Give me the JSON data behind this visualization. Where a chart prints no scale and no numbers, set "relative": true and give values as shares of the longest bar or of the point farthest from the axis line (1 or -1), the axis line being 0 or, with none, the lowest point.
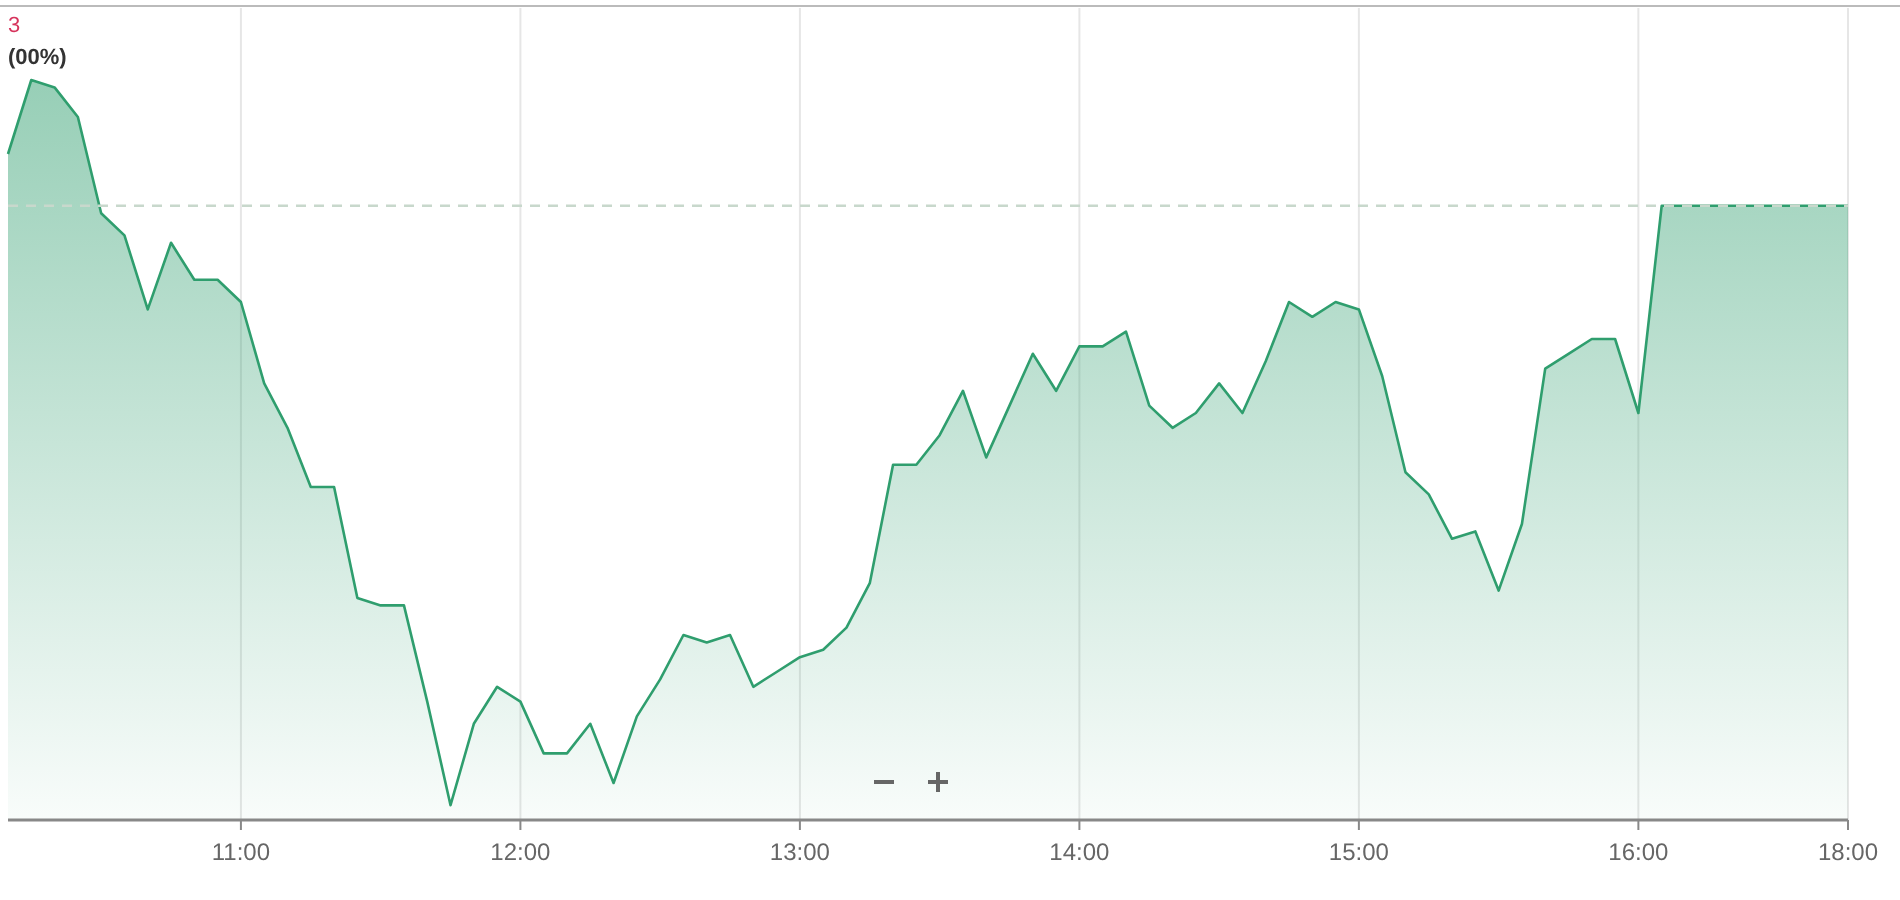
{
  "chart_data": {
    "type": "area",
    "relative": true,
    "categories": [
      null,
      null,
      null,
      null,
      null,
      null,
      null,
      null,
      null,
      null,
      "11:00",
      null,
      null,
      null,
      null,
      null,
      null,
      null,
      null,
      null,
      null,
      null,
      "12:00",
      null,
      null,
      null,
      null,
      null,
      null,
      null,
      null,
      null,
      null,
      null,
      "13:00",
      null,
      null,
      null,
      null,
      null,
      null,
      null,
      null,
      null,
      null,
      null,
      "14:00",
      null,
      null,
      null,
      null,
      null,
      null,
      null,
      null,
      null,
      null,
      null,
      "15:00",
      null,
      null,
      null,
      null,
      null,
      null,
      null,
      null,
      null,
      null,
      null,
      "16:00",
      null,
      null,
      null,
      null,
      null,
      null,
      null,
      null,
      "18:00"
    ],
    "series": [
      {
        "color": "#2f9e6e",
        "values": [
          0.9,
          1.0,
          0.99,
          0.95,
          0.82,
          0.79,
          0.69,
          0.78,
          0.73,
          0.73,
          0.7,
          0.59,
          0.53,
          0.45,
          0.45,
          0.3,
          0.29,
          0.29,
          0.16,
          0.02,
          0.13,
          0.18,
          0.16,
          0.09,
          0.09,
          0.13,
          0.05,
          0.14,
          0.19,
          0.25,
          0.24,
          0.25,
          0.18,
          0.2,
          0.22,
          0.23,
          0.26,
          0.32,
          0.48,
          0.48,
          0.52,
          0.58,
          0.49,
          0.56,
          0.63,
          0.58,
          0.64,
          0.64,
          0.66,
          0.56,
          0.53,
          0.55,
          0.59,
          0.55,
          0.62,
          0.7,
          0.68,
          0.7,
          0.69,
          0.6,
          0.47,
          0.44,
          0.38,
          0.39,
          0.31,
          0.4,
          0.61,
          0.63,
          0.65,
          0.65,
          0.55,
          0.83,
          0.83,
          0.83,
          0.83,
          0.83,
          0.83,
          0.83,
          0.83,
          0.83
        ]
      }
    ],
    "ref_lines": [
      {
        "axis": "y",
        "value": 0.83,
        "color": "#c8d8cc",
        "line_style": "dashed"
      }
    ],
    "annotations": [
      "3",
      "(00%)"
    ],
    "grid": "x"
  }
}
